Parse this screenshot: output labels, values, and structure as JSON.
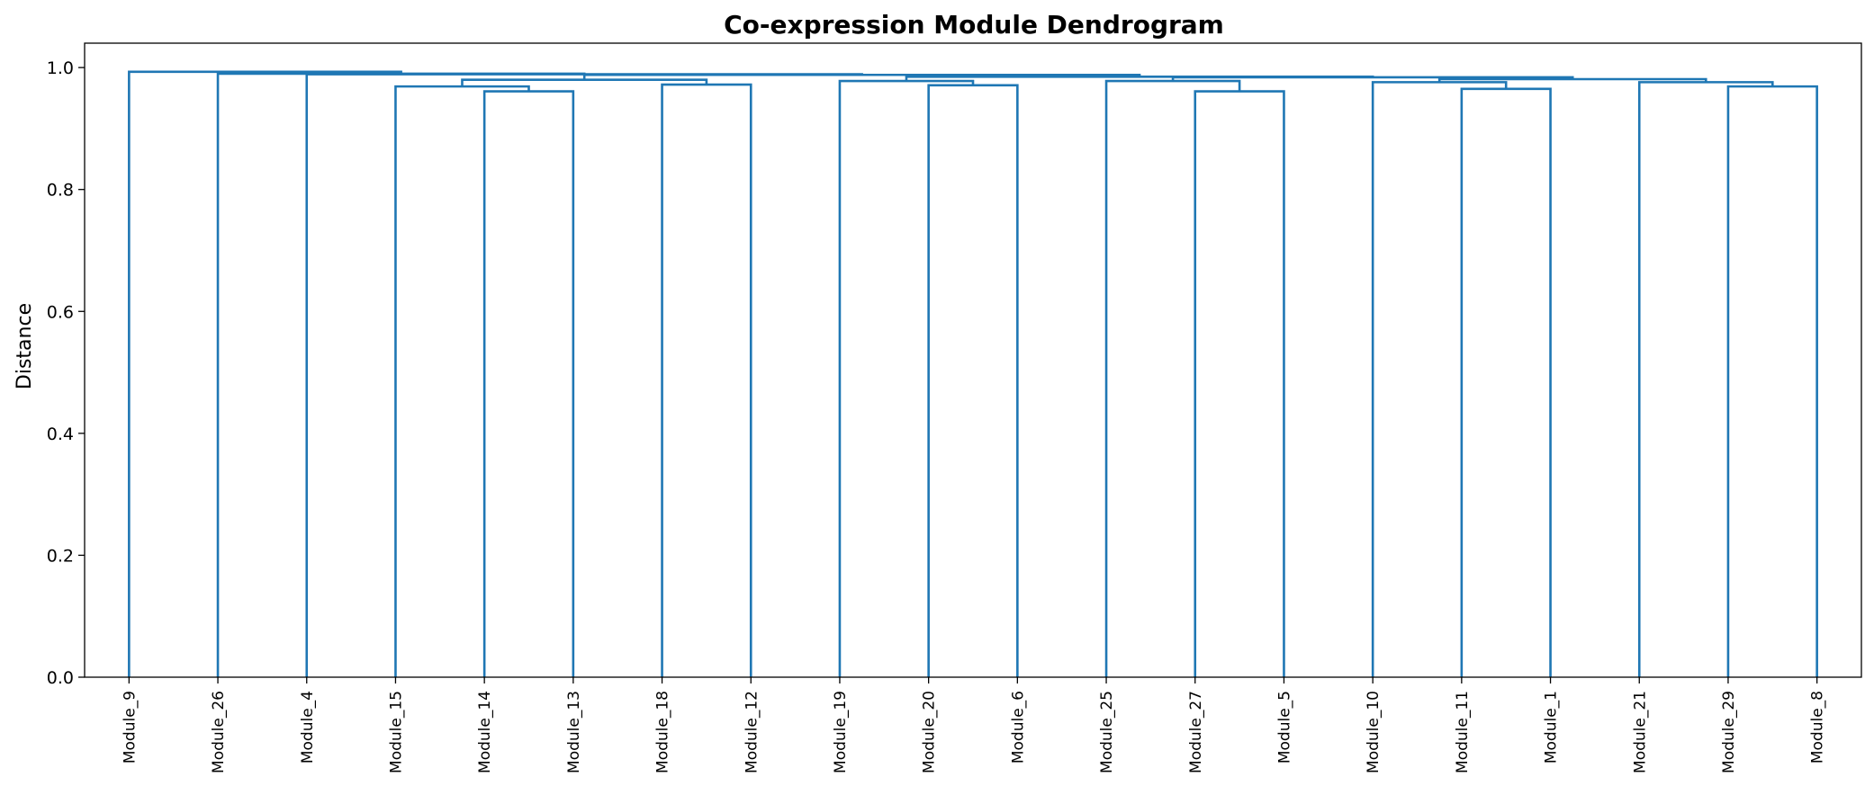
{
  "chart_data": {
    "type": "dendrogram",
    "title": "Co-expression Module Dendrogram",
    "xlabel": "",
    "ylabel": "Distance",
    "ylim": [
      0,
      1.04
    ],
    "yticks": [
      "0.0",
      "0.2",
      "0.4",
      "0.6",
      "0.8",
      "1.0"
    ],
    "grid": false,
    "color": "#1f77b4",
    "leaves": [
      "Module_9",
      "Module_26",
      "Module_4",
      "Module_15",
      "Module_14",
      "Module_13",
      "Module_18",
      "Module_12",
      "Module_19",
      "Module_20",
      "Module_6",
      "Module_25",
      "Module_27",
      "Module_5",
      "Module_10",
      "Module_11",
      "Module_1",
      "Module_21",
      "Module_29",
      "Module_8"
    ],
    "merges": [
      {
        "left": "Module_14",
        "right": "Module_13",
        "height": 0.961
      },
      {
        "left": "Module_27",
        "right": "Module_5",
        "height": 0.961
      },
      {
        "left": "Module_11",
        "right": "Module_1",
        "height": 0.965
      },
      {
        "left": "Module_15",
        "right": "Module_14+Module_13",
        "height": 0.969
      },
      {
        "left": "Module_29",
        "right": "Module_8",
        "height": 0.969
      },
      {
        "left": "Module_20",
        "right": "Module_6",
        "height": 0.971
      },
      {
        "left": "Module_18",
        "right": "Module_12",
        "height": 0.972
      },
      {
        "left": "Module_10",
        "right": "Module_11+Module_1",
        "height": 0.976
      },
      {
        "left": "Module_21",
        "right": "Module_29+Module_8",
        "height": 0.976
      },
      {
        "left": "Module_19",
        "right": "Module_20+Module_6",
        "height": 0.978
      },
      {
        "left": "Module_25",
        "right": "Module_27+Module_5",
        "height": 0.978
      },
      {
        "left": "Module_15 cluster",
        "right": "Module_18 cluster",
        "height": 0.98
      },
      {
        "left": "Module_10 cluster",
        "right": "Module_21 cluster",
        "height": 0.981
      },
      {
        "left": "Module_25 cluster",
        "right": "Module_10/21 cluster",
        "height": 0.984
      },
      {
        "left": "Module_19 cluster",
        "right": "Module_25/10/21 cluster",
        "height": 0.985
      },
      {
        "left": "Module_15/18 cluster",
        "right": "Module_19/25/10/21 cluster",
        "height": 0.988
      },
      {
        "left": "Module_4",
        "right": "Module_15/18/19/25/10/21 cluster",
        "height": 0.989
      },
      {
        "left": "Module_26",
        "right": "Module_4 cluster",
        "height": 0.99
      },
      {
        "left": "Module_9",
        "right": "Module_26 cluster",
        "height": 0.993
      }
    ]
  }
}
